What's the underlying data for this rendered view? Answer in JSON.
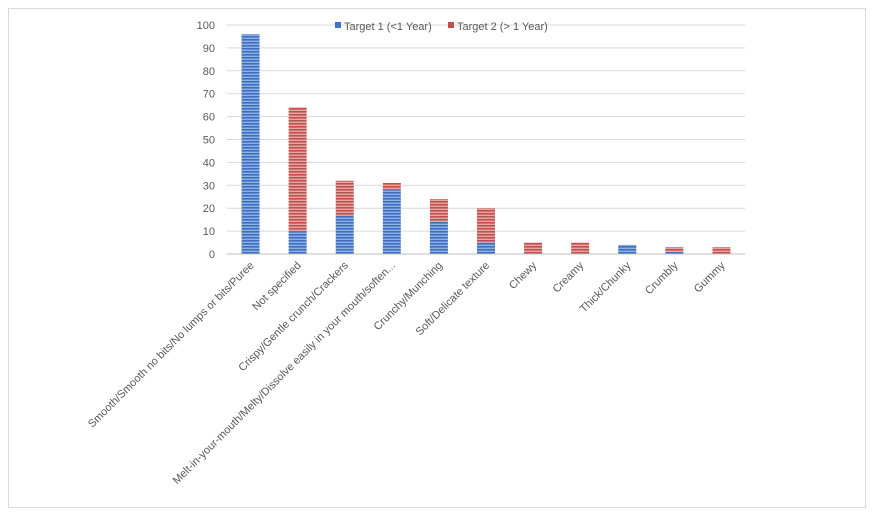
{
  "chart_data": {
    "type": "bar",
    "stacked": true,
    "title": "",
    "xlabel": "",
    "ylabel": "",
    "ylim": [
      0,
      100
    ],
    "yticks": [
      0,
      10,
      20,
      30,
      40,
      50,
      60,
      70,
      80,
      90,
      100
    ],
    "grid": true,
    "legend_position": "top",
    "categories": [
      "Smooth/Smooth no bits/No lumps or bits/Puree",
      "Not specified",
      "Crispy/Gentle crunch/Crackers",
      "Melt-in-your-mouth/Melty/Dissolve easily in your mouth/soften...",
      "Crunchy/Munching",
      "Soft/Delicate texture",
      "Chewy",
      "Creamy",
      "Thick/Chunky",
      "Crumbly",
      "Gummy"
    ],
    "series": [
      {
        "name": "Target 1 (<1 Year)",
        "color": "#4472c4",
        "values": [
          96,
          10,
          17,
          28,
          14,
          5,
          0,
          0,
          4,
          1,
          0
        ]
      },
      {
        "name": "Target 2 (> 1 Year)",
        "color": "#c0504d",
        "values": [
          0,
          54,
          15,
          3,
          10,
          15,
          5,
          5,
          0,
          2,
          3
        ]
      }
    ]
  }
}
